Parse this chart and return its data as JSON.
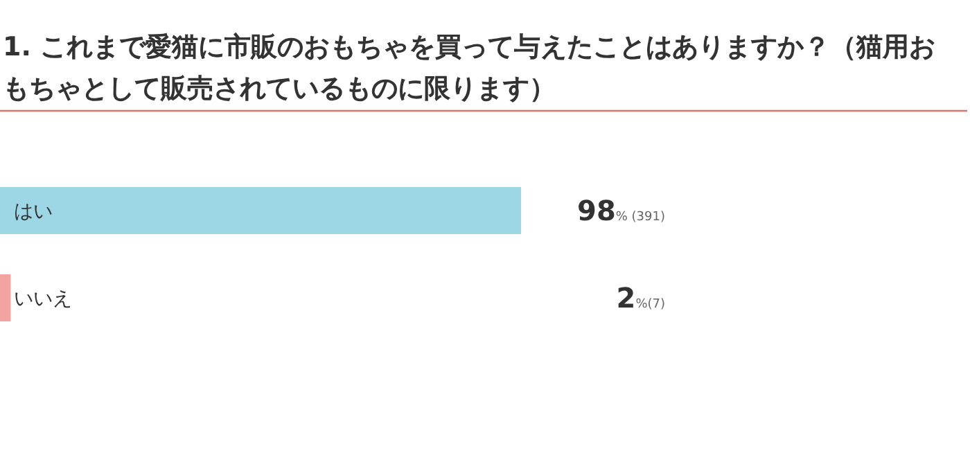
{
  "chart_data": {
    "type": "bar",
    "orientation": "horizontal",
    "title": "1. これまで愛猫に市販のおもちゃを買って与えたことはありますか？（猫用おもちゃとして販売されているものに限ります）",
    "categories": [
      "はい",
      "いいえ"
    ],
    "values": [
      98,
      2
    ],
    "colors": [
      "#9dd6e4",
      "#f4a3a3"
    ],
    "value_labels": [
      "98% (391)",
      "2%(7)"
    ]
  }
}
